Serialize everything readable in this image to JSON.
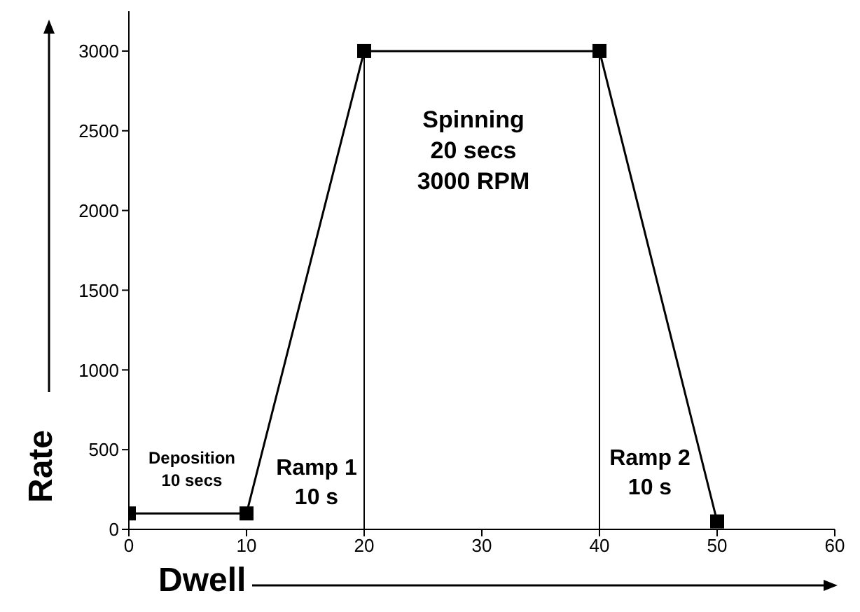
{
  "chart_data": {
    "type": "line",
    "xlabel": "Dwell",
    "ylabel": "Rate",
    "x": [
      0,
      10,
      20,
      40,
      50
    ],
    "values": [
      100,
      100,
      3000,
      3000,
      50
    ],
    "color": "#000000",
    "marker": "square",
    "line_style": "solid",
    "grid": false,
    "legend": false,
    "xlim": [
      0,
      60
    ],
    "xticks": [
      0,
      10,
      20,
      30,
      40,
      50,
      60
    ],
    "ylim": [
      0,
      3250
    ],
    "yticks": [
      0,
      500,
      1000,
      1500,
      2000,
      2500,
      3000
    ],
    "ref_lines": [
      {
        "axis": "x",
        "value": 20,
        "color": "#000000"
      },
      {
        "axis": "x",
        "value": 40,
        "color": "#000000"
      }
    ],
    "annotations": [
      "Deposition\n10 secs",
      "Ramp 1\n10 s",
      "Spinning\n20 secs\n3000 RPM",
      "Ramp 2\n10 s"
    ]
  }
}
